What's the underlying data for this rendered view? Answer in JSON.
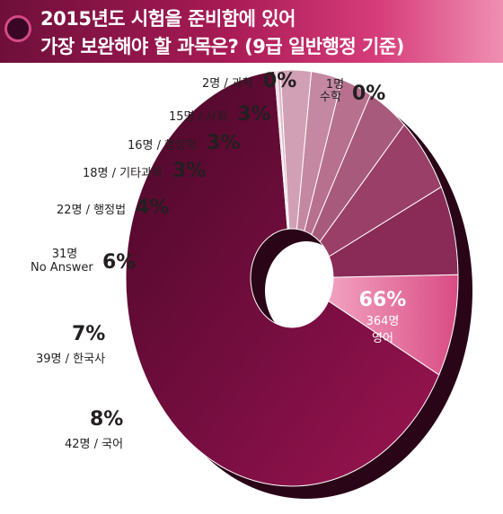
{
  "header": {
    "line1": "2015년도 시험을 준비함에 있어",
    "line2": "가장 보완해야 할 과목은? (9급 일반행정 기준)"
  },
  "colors": {
    "header_start": "#6e0f3a",
    "header_end": "#f08fb2",
    "depth": "#2a0517"
  },
  "chart_data": {
    "type": "pie",
    "variant": "donut-3d",
    "title": "2015년도 시험을 준비함에 있어 가장 보완해야 할 과목은? (9급 일반행정 기준)",
    "unit": "명",
    "slices": [
      {
        "name": "영어",
        "count": 364,
        "count_label": "364명",
        "pct_label": "66%",
        "value": 66,
        "color": "#7b0f45"
      },
      {
        "name": "국어",
        "count": 42,
        "count_label": "42명",
        "pct_label": "8%",
        "value": 8,
        "color": "#ec8aac"
      },
      {
        "name": "한국사",
        "count": 39,
        "count_label": "39명",
        "pct_label": "7%",
        "value": 7,
        "color": "#8a2a56"
      },
      {
        "name": "No Answer",
        "count": 31,
        "count_label": "31명",
        "pct_label": "6%",
        "value": 6,
        "color": "#9a3f68"
      },
      {
        "name": "행정법",
        "count": 22,
        "count_label": "22명",
        "pct_label": "4%",
        "value": 4,
        "color": "#a85a7d"
      },
      {
        "name": "기타과목",
        "count": 18,
        "count_label": "18명",
        "pct_label": "3%",
        "value": 3,
        "color": "#b8708f"
      },
      {
        "name": "행정학",
        "count": 16,
        "count_label": "16명",
        "pct_label": "3%",
        "value": 3,
        "color": "#c488a2"
      },
      {
        "name": "사회",
        "count": 15,
        "count_label": "15명",
        "pct_label": "3%",
        "value": 3,
        "color": "#d2a0b5"
      },
      {
        "name": "과학",
        "count": 2,
        "count_label": "2명",
        "pct_label": "0%",
        "value": 0.35,
        "color": "#ddb8c8"
      },
      {
        "name": "수학",
        "count": 1,
        "count_label": "1명",
        "pct_label": "0%",
        "value": 0.2,
        "color": "#e6cad6"
      }
    ]
  }
}
